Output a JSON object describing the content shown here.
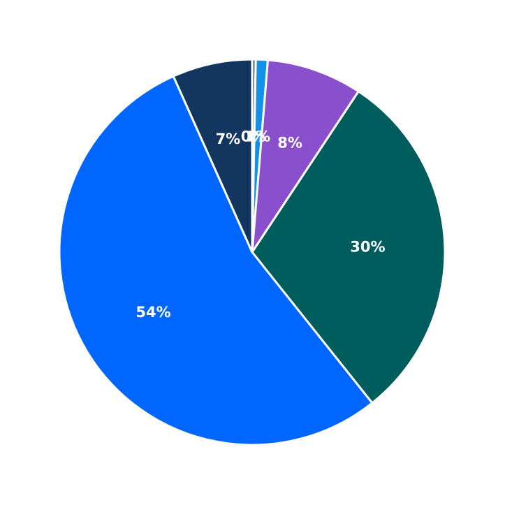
{
  "chart_data": {
    "type": "pie",
    "start": "top",
    "direction": "clockwise",
    "slices": [
      {
        "value": 0.3,
        "label": "0%",
        "color": "#5b6670"
      },
      {
        "value": 1.0,
        "label": "1%",
        "color": "#1192e8"
      },
      {
        "value": 8.0,
        "label": "8%",
        "color": "#8a4fcc"
      },
      {
        "value": 30.0,
        "label": "30%",
        "color": "#005d5d"
      },
      {
        "value": 54.0,
        "label": "54%",
        "color": "#0066ff"
      },
      {
        "value": 6.7,
        "label": "7%",
        "color": "#12365f"
      }
    ]
  }
}
